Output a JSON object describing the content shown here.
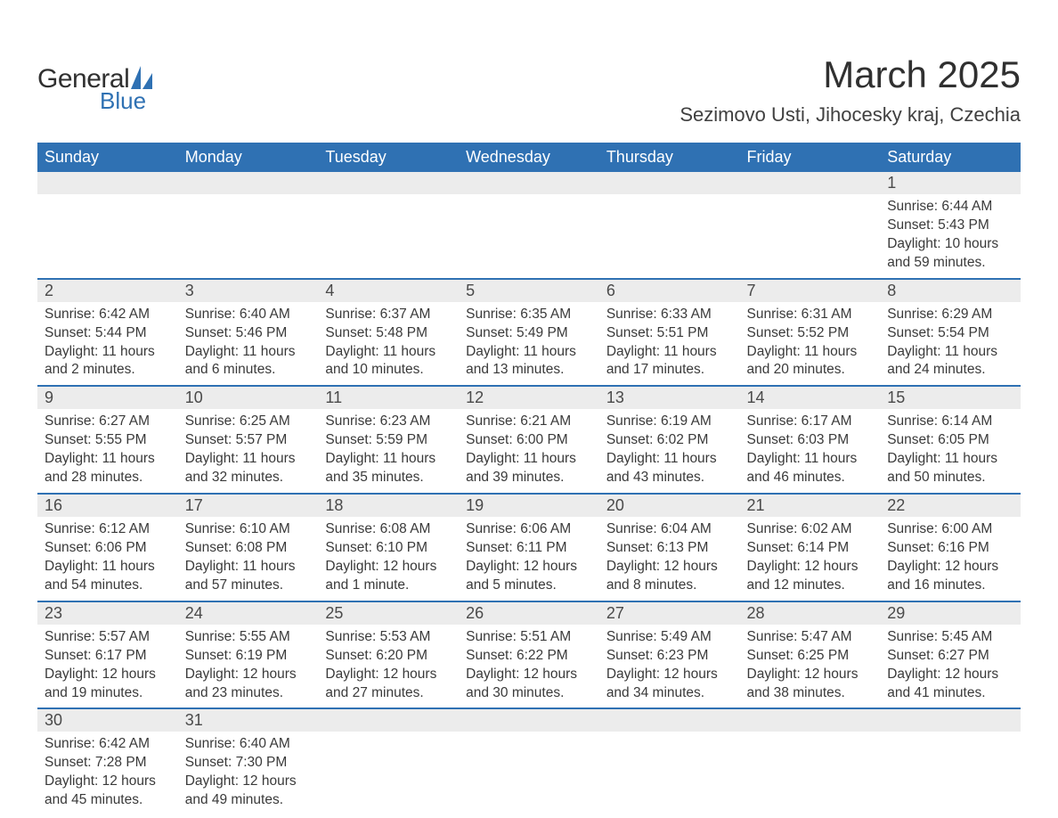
{
  "logo": {
    "general": "General",
    "blue": "Blue"
  },
  "title": "March 2025",
  "subtitle": "Sezimovo Usti, Jihocesky kraj, Czechia",
  "colors": {
    "header_bg": "#2f71b3",
    "header_text": "#ffffff",
    "daynum_bg": "#ececec",
    "row_border": "#2f71b3",
    "body_text": "#3a3a3a",
    "title_text": "#303030"
  },
  "weekdays": [
    "Sunday",
    "Monday",
    "Tuesday",
    "Wednesday",
    "Thursday",
    "Friday",
    "Saturday"
  ],
  "weeks": [
    [
      null,
      null,
      null,
      null,
      null,
      null,
      {
        "n": "1",
        "sunrise": "6:44 AM",
        "sunset": "5:43 PM",
        "daylight": "10 hours and 59 minutes."
      }
    ],
    [
      {
        "n": "2",
        "sunrise": "6:42 AM",
        "sunset": "5:44 PM",
        "daylight": "11 hours and 2 minutes."
      },
      {
        "n": "3",
        "sunrise": "6:40 AM",
        "sunset": "5:46 PM",
        "daylight": "11 hours and 6 minutes."
      },
      {
        "n": "4",
        "sunrise": "6:37 AM",
        "sunset": "5:48 PM",
        "daylight": "11 hours and 10 minutes."
      },
      {
        "n": "5",
        "sunrise": "6:35 AM",
        "sunset": "5:49 PM",
        "daylight": "11 hours and 13 minutes."
      },
      {
        "n": "6",
        "sunrise": "6:33 AM",
        "sunset": "5:51 PM",
        "daylight": "11 hours and 17 minutes."
      },
      {
        "n": "7",
        "sunrise": "6:31 AM",
        "sunset": "5:52 PM",
        "daylight": "11 hours and 20 minutes."
      },
      {
        "n": "8",
        "sunrise": "6:29 AM",
        "sunset": "5:54 PM",
        "daylight": "11 hours and 24 minutes."
      }
    ],
    [
      {
        "n": "9",
        "sunrise": "6:27 AM",
        "sunset": "5:55 PM",
        "daylight": "11 hours and 28 minutes."
      },
      {
        "n": "10",
        "sunrise": "6:25 AM",
        "sunset": "5:57 PM",
        "daylight": "11 hours and 32 minutes."
      },
      {
        "n": "11",
        "sunrise": "6:23 AM",
        "sunset": "5:59 PM",
        "daylight": "11 hours and 35 minutes."
      },
      {
        "n": "12",
        "sunrise": "6:21 AM",
        "sunset": "6:00 PM",
        "daylight": "11 hours and 39 minutes."
      },
      {
        "n": "13",
        "sunrise": "6:19 AM",
        "sunset": "6:02 PM",
        "daylight": "11 hours and 43 minutes."
      },
      {
        "n": "14",
        "sunrise": "6:17 AM",
        "sunset": "6:03 PM",
        "daylight": "11 hours and 46 minutes."
      },
      {
        "n": "15",
        "sunrise": "6:14 AM",
        "sunset": "6:05 PM",
        "daylight": "11 hours and 50 minutes."
      }
    ],
    [
      {
        "n": "16",
        "sunrise": "6:12 AM",
        "sunset": "6:06 PM",
        "daylight": "11 hours and 54 minutes."
      },
      {
        "n": "17",
        "sunrise": "6:10 AM",
        "sunset": "6:08 PM",
        "daylight": "11 hours and 57 minutes."
      },
      {
        "n": "18",
        "sunrise": "6:08 AM",
        "sunset": "6:10 PM",
        "daylight": "12 hours and 1 minute."
      },
      {
        "n": "19",
        "sunrise": "6:06 AM",
        "sunset": "6:11 PM",
        "daylight": "12 hours and 5 minutes."
      },
      {
        "n": "20",
        "sunrise": "6:04 AM",
        "sunset": "6:13 PM",
        "daylight": "12 hours and 8 minutes."
      },
      {
        "n": "21",
        "sunrise": "6:02 AM",
        "sunset": "6:14 PM",
        "daylight": "12 hours and 12 minutes."
      },
      {
        "n": "22",
        "sunrise": "6:00 AM",
        "sunset": "6:16 PM",
        "daylight": "12 hours and 16 minutes."
      }
    ],
    [
      {
        "n": "23",
        "sunrise": "5:57 AM",
        "sunset": "6:17 PM",
        "daylight": "12 hours and 19 minutes."
      },
      {
        "n": "24",
        "sunrise": "5:55 AM",
        "sunset": "6:19 PM",
        "daylight": "12 hours and 23 minutes."
      },
      {
        "n": "25",
        "sunrise": "5:53 AM",
        "sunset": "6:20 PM",
        "daylight": "12 hours and 27 minutes."
      },
      {
        "n": "26",
        "sunrise": "5:51 AM",
        "sunset": "6:22 PM",
        "daylight": "12 hours and 30 minutes."
      },
      {
        "n": "27",
        "sunrise": "5:49 AM",
        "sunset": "6:23 PM",
        "daylight": "12 hours and 34 minutes."
      },
      {
        "n": "28",
        "sunrise": "5:47 AM",
        "sunset": "6:25 PM",
        "daylight": "12 hours and 38 minutes."
      },
      {
        "n": "29",
        "sunrise": "5:45 AM",
        "sunset": "6:27 PM",
        "daylight": "12 hours and 41 minutes."
      }
    ],
    [
      {
        "n": "30",
        "sunrise": "6:42 AM",
        "sunset": "7:28 PM",
        "daylight": "12 hours and 45 minutes."
      },
      {
        "n": "31",
        "sunrise": "6:40 AM",
        "sunset": "7:30 PM",
        "daylight": "12 hours and 49 minutes."
      },
      null,
      null,
      null,
      null,
      null
    ]
  ],
  "labels": {
    "sunrise": "Sunrise: ",
    "sunset": "Sunset: ",
    "daylight": "Daylight: "
  }
}
